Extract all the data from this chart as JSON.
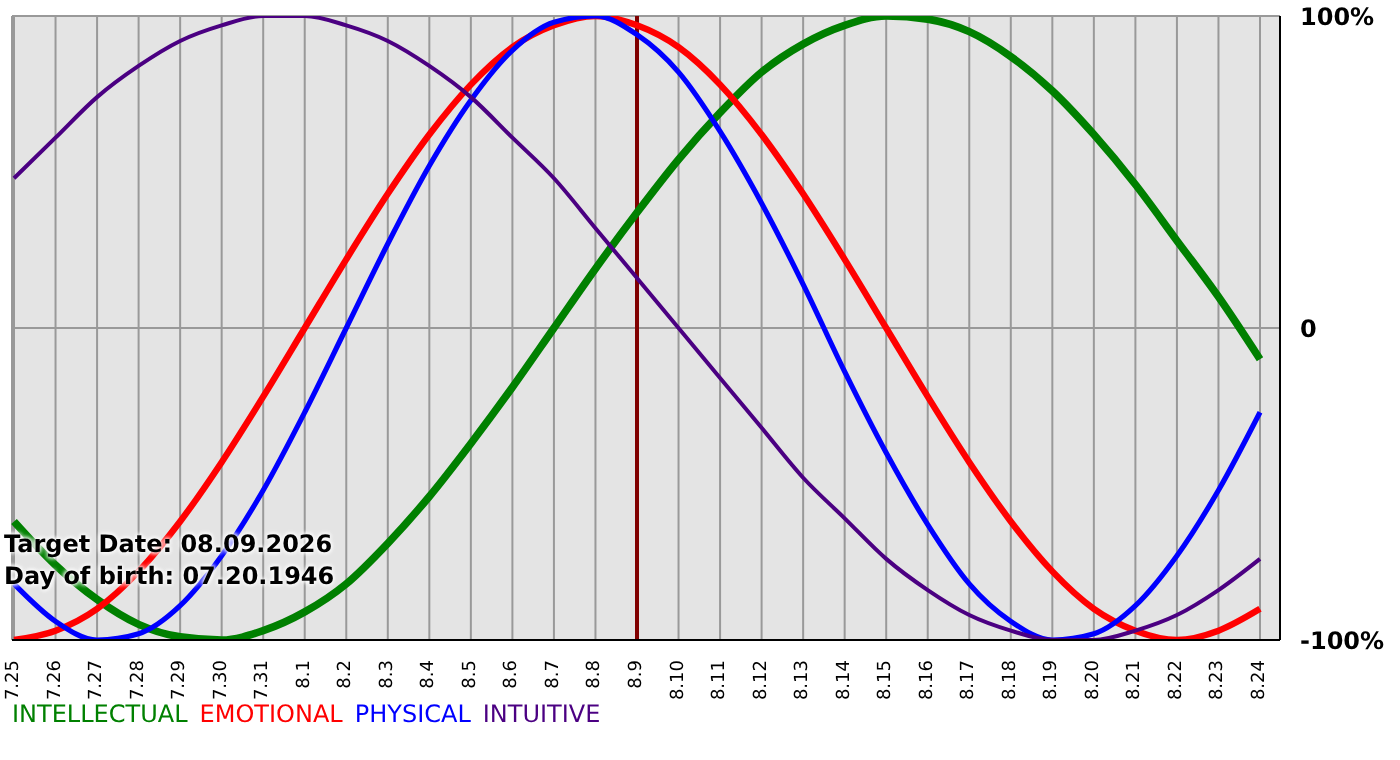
{
  "chart_data": {
    "type": "line",
    "categories": [
      "7.25",
      "7.26",
      "7.27",
      "7.28",
      "7.29",
      "7.30",
      "7.31",
      "8.1",
      "8.2",
      "8.3",
      "8.4",
      "8.5",
      "8.6",
      "8.7",
      "8.8",
      "8.9",
      "8.10",
      "8.11",
      "8.12",
      "8.13",
      "8.14",
      "8.15",
      "8.16",
      "8.17",
      "8.18",
      "8.19",
      "8.20",
      "8.21",
      "8.22",
      "8.23",
      "8.24"
    ],
    "series": [
      {
        "name": "INTELLECTUAL",
        "color": "#008000",
        "values": [
          -62,
          -76,
          -87,
          -95,
          -99,
          -100,
          -97,
          -91,
          -82,
          -69,
          -54,
          -37,
          -19,
          0,
          19,
          37,
          54,
          69,
          82,
          91,
          97,
          100,
          99,
          95,
          87,
          76,
          62,
          46,
          28,
          10,
          -10
        ]
      },
      {
        "name": "EMOTIONAL",
        "color": "#ff0000",
        "values": [
          -100,
          -97,
          -90,
          -78,
          -62,
          -43,
          -22,
          0,
          22,
          43,
          62,
          78,
          90,
          97,
          100,
          97,
          90,
          78,
          62,
          43,
          22,
          0,
          -22,
          -43,
          -62,
          -78,
          -90,
          -97,
          -100,
          -97,
          -90
        ]
      },
      {
        "name": "PHYSICAL",
        "color": "#0000ff",
        "values": [
          -82,
          -94,
          -100,
          -98,
          -89,
          -73,
          -52,
          -27,
          0,
          27,
          52,
          73,
          89,
          98,
          100,
          94,
          82,
          63,
          40,
          14,
          -14,
          -40,
          -63,
          -82,
          -94,
          -100,
          -98,
          -89,
          -73,
          -52,
          -27
        ]
      },
      {
        "name": "INTUITIVE",
        "color": "#4b0082",
        "values": [
          48,
          61,
          74,
          84,
          92,
          97,
          100,
          100,
          97,
          92,
          84,
          74,
          61,
          48,
          32,
          16,
          0,
          -16,
          -32,
          -48,
          -61,
          -74,
          -84,
          -92,
          -97,
          -100,
          -100,
          -97,
          -92,
          -84,
          -74
        ]
      }
    ],
    "ylim": [
      -100,
      100
    ],
    "yticks": [
      {
        "value": 100,
        "label": "100%"
      },
      0,
      {
        "value": -100,
        "label": "-100%"
      }
    ],
    "grid": true,
    "legend": "bottom left",
    "marker": "none",
    "line_style": "solid",
    "ref_lines": [
      {
        "axis": "x",
        "value": "8.9",
        "color": "#800000"
      }
    ],
    "annotations": [
      "Target Date: 08.09.2026",
      "Day of birth: 07.20.1946"
    ]
  }
}
